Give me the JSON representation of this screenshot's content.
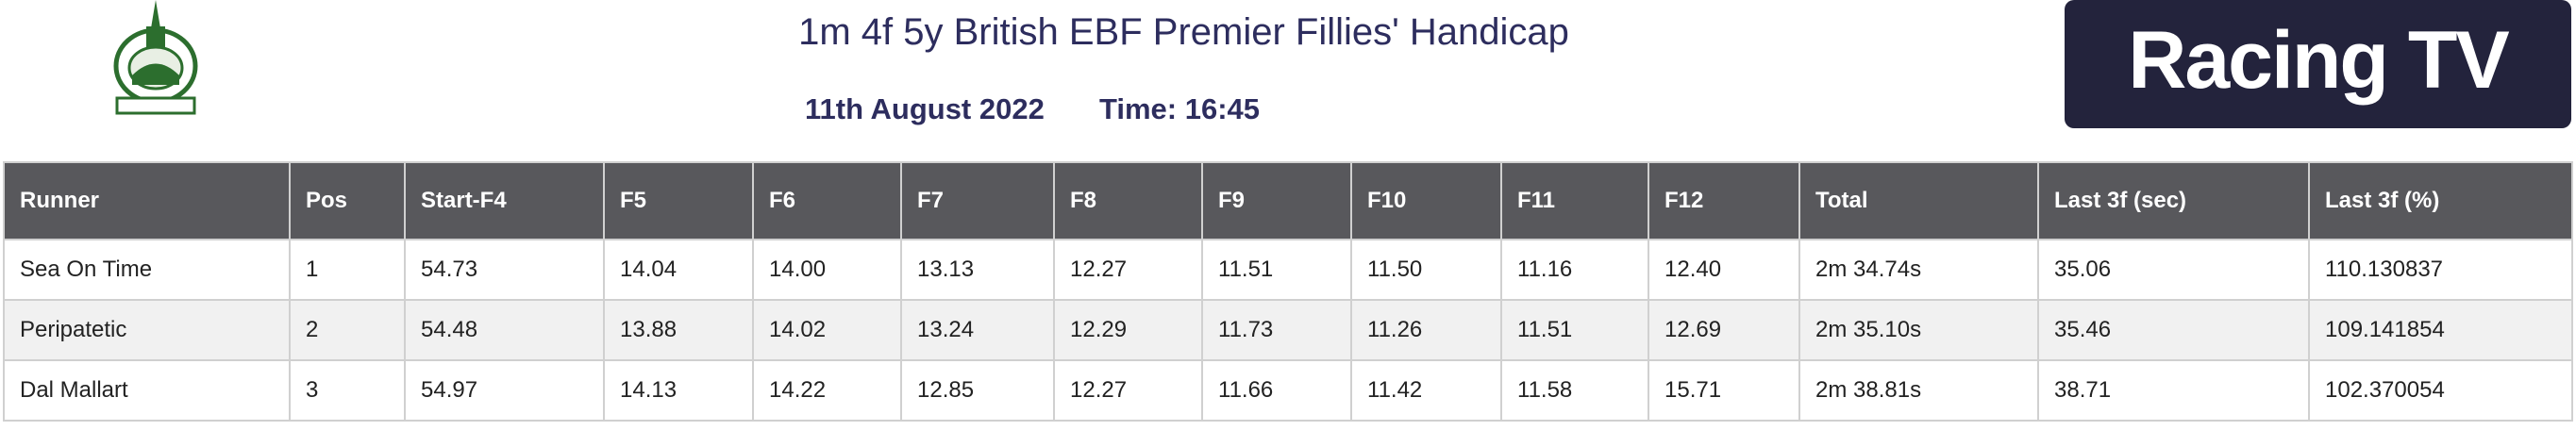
{
  "header": {
    "title": "1m 4f 5y British EBF Premier Fillies' Handicap",
    "date": "11th August 2022",
    "time": "Time: 16:45",
    "logo_text": "Racing TV"
  },
  "table": {
    "columns": [
      "Runner",
      "Pos",
      "Start-F4",
      "F5",
      "F6",
      "F7",
      "F8",
      "F9",
      "F10",
      "F11",
      "F12",
      "Total",
      "Last 3f (sec)",
      "Last 3f (%)"
    ],
    "rows": [
      [
        "Sea On Time",
        "1",
        "54.73",
        "14.04",
        "14.00",
        "13.13",
        "12.27",
        "11.51",
        "11.50",
        "11.16",
        "12.40",
        "2m 34.74s",
        "35.06",
        "110.130837"
      ],
      [
        "Peripatetic",
        "2",
        "54.48",
        "13.88",
        "14.02",
        "13.24",
        "12.29",
        "11.73",
        "11.26",
        "11.51",
        "12.69",
        "2m 35.10s",
        "35.46",
        "109.141854"
      ],
      [
        "Dal Mallart",
        "3",
        "54.97",
        "14.13",
        "14.22",
        "12.85",
        "12.27",
        "11.66",
        "11.42",
        "11.58",
        "15.71",
        "2m 38.81s",
        "38.71",
        "102.370054"
      ]
    ]
  }
}
